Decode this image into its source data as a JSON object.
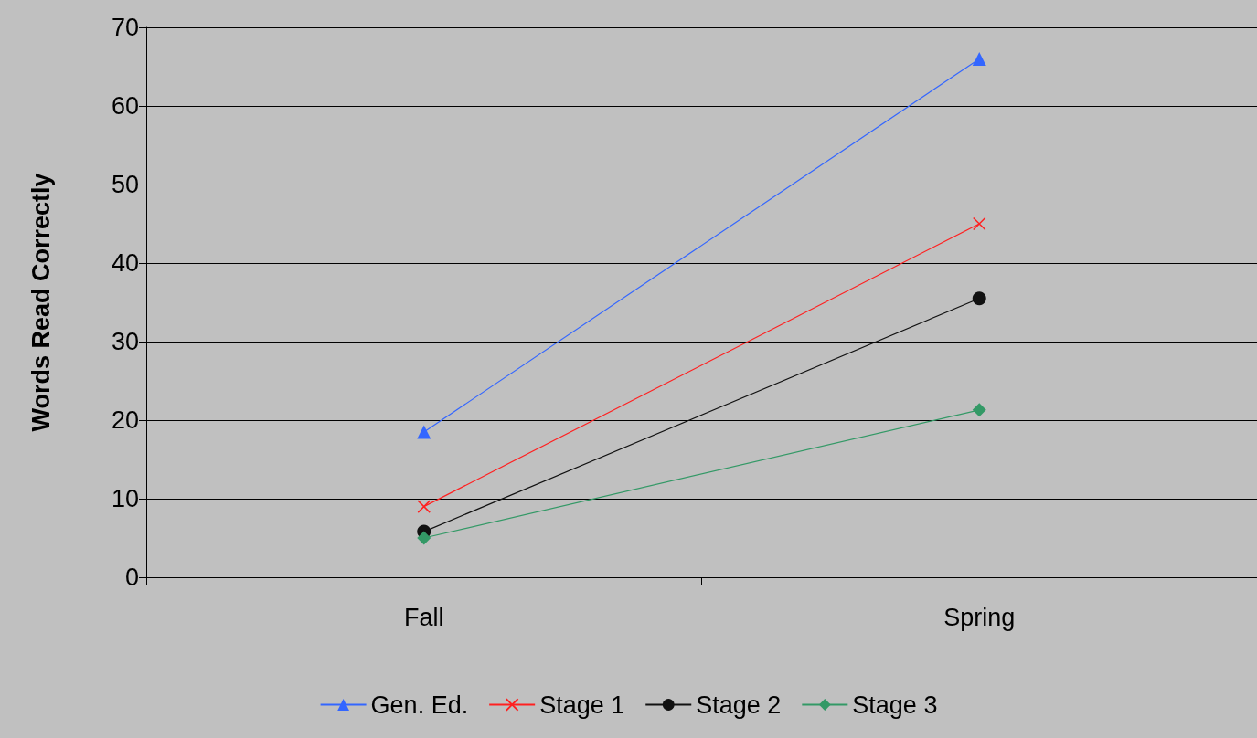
{
  "chart_data": {
    "type": "line",
    "ylabel": "Words Read Correctly",
    "categories": [
      "Fall",
      "Spring"
    ],
    "series": [
      {
        "name": "Gen. Ed.",
        "color": "#3366ff",
        "marker": "triangle",
        "values": [
          18.5,
          66
        ]
      },
      {
        "name": "Stage 1",
        "color": "#ff2020",
        "marker": "cross",
        "values": [
          9,
          45
        ]
      },
      {
        "name": "Stage 2",
        "color": "#111111",
        "marker": "circle",
        "values": [
          5.8,
          35.5
        ]
      },
      {
        "name": "Stage 3",
        "color": "#339966",
        "marker": "diamond",
        "values": [
          5,
          21.3
        ]
      }
    ],
    "ylim": [
      0,
      70
    ],
    "yticks": [
      0,
      10,
      20,
      30,
      40,
      50,
      60,
      70
    ],
    "grid": "y",
    "legend": "bottom"
  }
}
